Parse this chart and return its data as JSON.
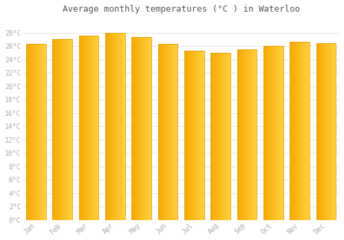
{
  "title": "Average monthly temperatures (°C ) in Waterloo",
  "months": [
    "Jan",
    "Feb",
    "Mar",
    "Apr",
    "May",
    "Jun",
    "Jul",
    "Aug",
    "Sep",
    "Oct",
    "Nov",
    "Dec"
  ],
  "values": [
    26.3,
    27.0,
    27.5,
    28.0,
    27.3,
    26.3,
    25.3,
    25.0,
    25.5,
    26.0,
    26.6,
    26.4
  ],
  "bar_color_left": "#F5A800",
  "bar_color_right": "#FFD040",
  "ylim": [
    0,
    30
  ],
  "yticks": [
    0,
    2,
    4,
    6,
    8,
    10,
    12,
    14,
    16,
    18,
    20,
    22,
    24,
    26,
    28
  ],
  "ytick_labels": [
    "0°C",
    "2°C",
    "4°C",
    "6°C",
    "8°C",
    "10°C",
    "12°C",
    "14°C",
    "16°C",
    "18°C",
    "20°C",
    "22°C",
    "24°C",
    "26°C",
    "28°C"
  ],
  "fig_background": "#ffffff",
  "plot_background": "#ffffff",
  "grid_color": "#e8e8e8",
  "font_color": "#aaaaaa",
  "title_color": "#555555",
  "bar_edge_color": "#E09A00",
  "bar_width": 0.75,
  "title_fontsize": 9,
  "tick_fontsize": 7,
  "n_gradient_steps": 50
}
